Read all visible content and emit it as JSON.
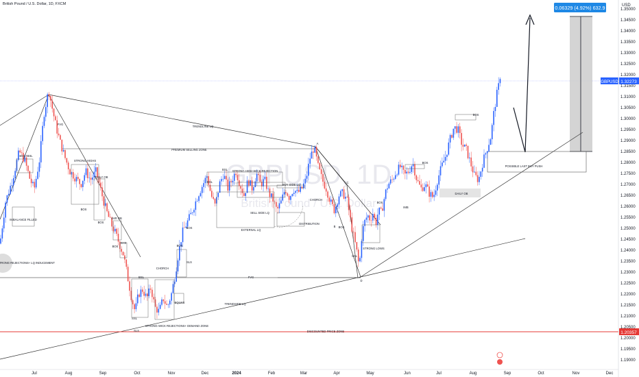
{
  "header": {
    "symbol_title": "British Pound / U.S. Dollar, 1D, FXCM",
    "currency": "USD"
  },
  "watermark": {
    "big": "GBPUSD, 1D",
    "small": "British Pound / U.S. Dollar"
  },
  "colors": {
    "up": "#2962ff",
    "down": "#ef5350",
    "axis_text": "#131722",
    "zone_red": "#e53935",
    "price_tag": "#2962ff",
    "target_fill": "#c9c9c9",
    "target_label": "#1e88e5"
  },
  "chart_data": {
    "type": "candlestick",
    "symbol": "GBPUSD",
    "timeframe": "1D",
    "y_axis_ticks": [
      "1.35000",
      "1.34500",
      "1.34000",
      "1.33500",
      "1.33000",
      "1.32500",
      "1.32000",
      "1.31500",
      "1.31000",
      "1.30500",
      "1.30000",
      "1.29500",
      "1.29000",
      "1.28500",
      "1.28000",
      "1.27500",
      "1.27000",
      "1.26500",
      "1.26000",
      "1.25500",
      "1.25000",
      "1.24500",
      "1.24000",
      "1.23500",
      "1.23000",
      "1.22500",
      "1.22000",
      "1.21500",
      "1.21000",
      "1.20500",
      "1.20000",
      "1.19500",
      "1.19000"
    ],
    "ylim": [
      1.1875,
      1.3525
    ],
    "x_axis_ticks": [
      {
        "label": "Jul",
        "x": 50
      },
      {
        "label": "Aug",
        "x": 100
      },
      {
        "label": "Sep",
        "x": 150
      },
      {
        "label": "Oct",
        "x": 200
      },
      {
        "label": "Nov",
        "x": 250
      },
      {
        "label": "Dec",
        "x": 299
      },
      {
        "label": "2024",
        "x": 345
      },
      {
        "label": "Feb",
        "x": 396
      },
      {
        "label": "Mar",
        "x": 443
      },
      {
        "label": "Apr",
        "x": 491
      },
      {
        "label": "May",
        "x": 540
      },
      {
        "label": "Jun",
        "x": 594
      },
      {
        "label": "Jul",
        "x": 640
      },
      {
        "label": "Aug",
        "x": 690
      },
      {
        "label": "Sep",
        "x": 740
      },
      {
        "label": "Oct",
        "x": 789
      },
      {
        "label": "Nov",
        "x": 840
      },
      {
        "label": "Dec",
        "x": 889
      }
    ],
    "current_price": {
      "label": "GBPUSD",
      "value": "1.32273",
      "y": 1.32273
    },
    "discount_price": {
      "value": "1.20357",
      "y": 1.20357
    },
    "target_label": "0.06329 (4.92%) 632.9",
    "price_path": [
      [
        0,
        1.243
      ],
      [
        8,
        1.262
      ],
      [
        18,
        1.272
      ],
      [
        28,
        1.285
      ],
      [
        36,
        1.281
      ],
      [
        44,
        1.272
      ],
      [
        50,
        1.268
      ],
      [
        58,
        1.282
      ],
      [
        64,
        1.302
      ],
      [
        71,
        1.313
      ],
      [
        76,
        1.305
      ],
      [
        82,
        1.296
      ],
      [
        88,
        1.289
      ],
      [
        95,
        1.282
      ],
      [
        102,
        1.276
      ],
      [
        110,
        1.273
      ],
      [
        118,
        1.27
      ],
      [
        125,
        1.276
      ],
      [
        132,
        1.272
      ],
      [
        140,
        1.276
      ],
      [
        148,
        1.266
      ],
      [
        155,
        1.258
      ],
      [
        162,
        1.252
      ],
      [
        168,
        1.248
      ],
      [
        174,
        1.243
      ],
      [
        180,
        1.238
      ],
      [
        186,
        1.228
      ],
      [
        192,
        1.218
      ],
      [
        197,
        1.212
      ],
      [
        202,
        1.22
      ],
      [
        208,
        1.222
      ],
      [
        214,
        1.218
      ],
      [
        220,
        1.223
      ],
      [
        226,
        1.214
      ],
      [
        232,
        1.212
      ],
      [
        238,
        1.218
      ],
      [
        244,
        1.214
      ],
      [
        250,
        1.22
      ],
      [
        255,
        1.228
      ],
      [
        260,
        1.238
      ],
      [
        266,
        1.248
      ],
      [
        272,
        1.252
      ],
      [
        278,
        1.256
      ],
      [
        284,
        1.261
      ],
      [
        290,
        1.266
      ],
      [
        296,
        1.27
      ],
      [
        302,
        1.274
      ],
      [
        308,
        1.265
      ],
      [
        314,
        1.26
      ],
      [
        320,
        1.27
      ],
      [
        326,
        1.275
      ],
      [
        332,
        1.268
      ],
      [
        338,
        1.272
      ],
      [
        344,
        1.276
      ],
      [
        350,
        1.27
      ],
      [
        356,
        1.265
      ],
      [
        362,
        1.272
      ],
      [
        368,
        1.268
      ],
      [
        374,
        1.275
      ],
      [
        380,
        1.27
      ],
      [
        386,
        1.272
      ],
      [
        392,
        1.266
      ],
      [
        398,
        1.263
      ],
      [
        404,
        1.258
      ],
      [
        410,
        1.262
      ],
      [
        416,
        1.268
      ],
      [
        422,
        1.264
      ],
      [
        428,
        1.268
      ],
      [
        434,
        1.266
      ],
      [
        440,
        1.268
      ],
      [
        446,
        1.272
      ],
      [
        452,
        1.282
      ],
      [
        458,
        1.287
      ],
      [
        464,
        1.278
      ],
      [
        470,
        1.272
      ],
      [
        476,
        1.268
      ],
      [
        482,
        1.262
      ],
      [
        488,
        1.258
      ],
      [
        494,
        1.265
      ],
      [
        500,
        1.266
      ],
      [
        506,
        1.263
      ],
      [
        512,
        1.252
      ],
      [
        516,
        1.246
      ],
      [
        520,
        1.24
      ],
      [
        524,
        1.232
      ],
      [
        528,
        1.248
      ],
      [
        532,
        1.253
      ],
      [
        536,
        1.256
      ],
      [
        540,
        1.254
      ],
      [
        544,
        1.257
      ],
      [
        548,
        1.252
      ],
      [
        552,
        1.258
      ],
      [
        556,
        1.257
      ],
      [
        562,
        1.266
      ],
      [
        566,
        1.27
      ],
      [
        572,
        1.272
      ],
      [
        578,
        1.276
      ],
      [
        584,
        1.278
      ],
      [
        590,
        1.274
      ],
      [
        596,
        1.276
      ],
      [
        602,
        1.28
      ],
      [
        608,
        1.272
      ],
      [
        614,
        1.268
      ],
      [
        620,
        1.27
      ],
      [
        626,
        1.266
      ],
      [
        632,
        1.264
      ],
      [
        638,
        1.272
      ],
      [
        644,
        1.278
      ],
      [
        650,
        1.283
      ],
      [
        656,
        1.29
      ],
      [
        662,
        1.296
      ],
      [
        668,
        1.295
      ],
      [
        674,
        1.288
      ],
      [
        680,
        1.286
      ],
      [
        686,
        1.28
      ],
      [
        692,
        1.274
      ],
      [
        698,
        1.272
      ],
      [
        704,
        1.28
      ],
      [
        710,
        1.286
      ],
      [
        716,
        1.292
      ],
      [
        720,
        1.302
      ],
      [
        724,
        1.31
      ],
      [
        728,
        1.316
      ],
      [
        731,
        1.323
      ]
    ],
    "candles_note": "Daily candles, roughly Jun 2023 to Aug 2024",
    "annotations": [
      "BOS+BSL",
      "IMBALANCE FILLED",
      "STRONG REJECTIONS+ LQ INDUCEMENT",
      "FVG",
      "STRONG HIGHS",
      "BOS",
      "DAILY OB",
      "BOS",
      "4HR OB",
      "BOS",
      "SHS",
      "BSL",
      "SSL",
      "SLS",
      "STRONG WICK REJECTIONS+ DEMAND ZONE",
      "CHORCH",
      "EQLWS",
      "BOS",
      "SLS",
      "BOS",
      "TRENDLINE LQ",
      "PREMIUM SELLING ZONE",
      "BSL",
      "STRONG HIGH WICK REJECTION",
      "BSL",
      "BUY SIDE LQ",
      "SELL SIDE LQ",
      "EXTERNAL LQ",
      "CHORCH",
      "DISTRIBUTION",
      "A",
      "C",
      "B",
      "BOS",
      "SSL",
      "D",
      "STRONG LOWS",
      "FVG",
      "TRENDSIDE LQ",
      "BOS",
      "IMB",
      "DAILY OB",
      "BOS",
      "POSSIBLE LAST BUY PUSH",
      "DISCOUNTED PRICE ZONE",
      "SLS"
    ]
  }
}
